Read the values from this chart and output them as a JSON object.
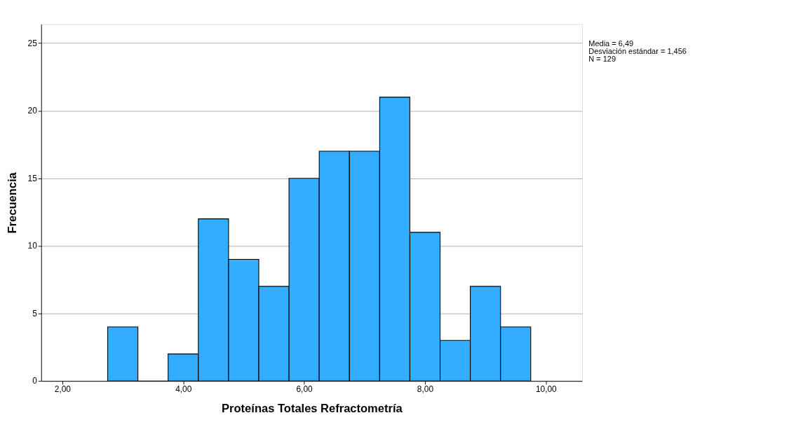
{
  "chart_data": {
    "type": "histogram",
    "xlabel": "Proteínas Totales Refractometría",
    "ylabel": "Frecuencia",
    "bins": [
      2.75,
      3.25,
      3.75,
      4.25,
      4.75,
      5.25,
      5.75,
      6.25,
      6.75,
      7.25,
      7.75,
      8.25,
      8.75,
      9.25,
      9.75
    ],
    "values": [
      4,
      0,
      2,
      12,
      9,
      7,
      15,
      17,
      17,
      21,
      11,
      3,
      7,
      4
    ],
    "color": "#33adff",
    "xlim": [
      1.65,
      10.6
    ],
    "xticks": [
      {
        "value": 2,
        "label": "2,00"
      },
      {
        "value": 4,
        "label": "4,00"
      },
      {
        "value": 6,
        "label": "6,00"
      },
      {
        "value": 8,
        "label": "8,00"
      },
      {
        "value": 10,
        "label": "10,00"
      }
    ],
    "ylim": [
      0,
      26.4
    ],
    "yticks": [
      0,
      5,
      10,
      15,
      20,
      25
    ],
    "grid": "y",
    "annotations": [
      "Media = 6,49",
      "Desviación estándar = 1,456",
      "N = 129"
    ]
  }
}
